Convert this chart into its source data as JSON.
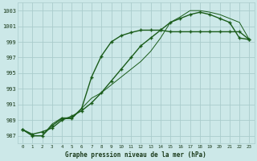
{
  "title": "Graphe pression niveau de la mer (hPa)",
  "background_color": "#cce8e8",
  "grid_color": "#aacccc",
  "line_color": "#1a5c1a",
  "xlim": [
    -0.5,
    23.5
  ],
  "ylim": [
    986.0,
    1004.0
  ],
  "yticks": [
    987,
    989,
    991,
    993,
    995,
    997,
    999,
    1001,
    1003
  ],
  "xticks": [
    0,
    1,
    2,
    3,
    4,
    5,
    6,
    7,
    8,
    9,
    10,
    11,
    12,
    13,
    14,
    15,
    16,
    17,
    18,
    19,
    20,
    21,
    22,
    23
  ],
  "series1_x": [
    0,
    1,
    2,
    3,
    4,
    5,
    6,
    7,
    8,
    9,
    10,
    11,
    12,
    13,
    14,
    15,
    16,
    17,
    18,
    19,
    20,
    21,
    22,
    23
  ],
  "series1_y": [
    987.8,
    987.0,
    987.0,
    988.3,
    989.2,
    989.2,
    990.5,
    994.5,
    997.2,
    999.0,
    999.8,
    1000.2,
    1000.5,
    1000.5,
    1000.5,
    1000.3,
    1000.3,
    1000.3,
    1000.3,
    1000.3,
    1000.3,
    1000.3,
    1000.3,
    999.3
  ],
  "series2_x": [
    0,
    1,
    2,
    3,
    4,
    5,
    6,
    7,
    8,
    9,
    10,
    11,
    12,
    13,
    14,
    15,
    16,
    17,
    18,
    19,
    20,
    21,
    22,
    23
  ],
  "series2_y": [
    987.8,
    987.0,
    987.0,
    988.5,
    989.3,
    989.3,
    990.5,
    991.8,
    992.5,
    993.5,
    994.5,
    995.5,
    996.5,
    997.8,
    999.5,
    1001.5,
    1002.2,
    1003.0,
    1003.0,
    1002.8,
    1002.5,
    1002.0,
    1001.5,
    999.3
  ],
  "series3_x": [
    0,
    1,
    2,
    3,
    4,
    5,
    6,
    7,
    8,
    9,
    10,
    11,
    12,
    13,
    14,
    15,
    16,
    17,
    18,
    19,
    20,
    21,
    22,
    23
  ],
  "series3_y": [
    987.8,
    987.2,
    987.5,
    988.0,
    989.0,
    989.5,
    990.2,
    991.2,
    992.5,
    994.0,
    995.5,
    997.0,
    998.5,
    999.5,
    1000.5,
    1001.5,
    1002.0,
    1002.5,
    1002.8,
    1002.5,
    1002.0,
    1001.5,
    999.5,
    999.3
  ]
}
